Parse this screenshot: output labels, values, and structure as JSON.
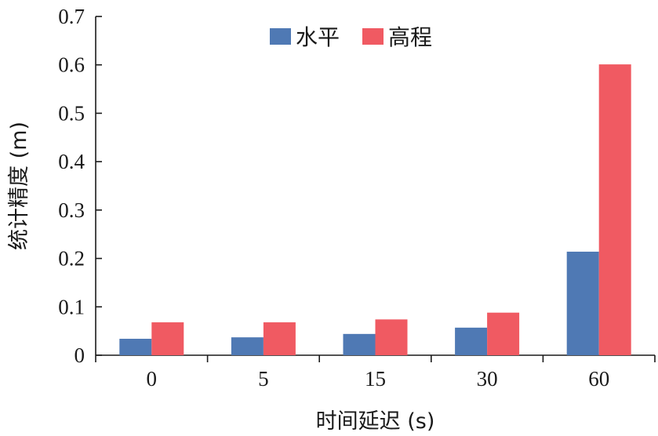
{
  "chart_data": {
    "type": "bar",
    "categories": [
      "0",
      "5",
      "15",
      "30",
      "60"
    ],
    "series": [
      {
        "name": "水平",
        "values": [
          0.034,
          0.037,
          0.044,
          0.057,
          0.214
        ],
        "color": "#4f79b4"
      },
      {
        "name": "高程",
        "values": [
          0.068,
          0.068,
          0.074,
          0.088,
          0.601
        ],
        "color": "#f05a62"
      }
    ],
    "xlabel": "时间延迟 (s)",
    "ylabel": "统计精度 (m)",
    "ylim": [
      0,
      0.7
    ],
    "yticks": [
      "0",
      "0.1",
      "0.2",
      "0.3",
      "0.4",
      "0.5",
      "0.6",
      "0.7"
    ],
    "grid": false,
    "legend": "top-center"
  }
}
